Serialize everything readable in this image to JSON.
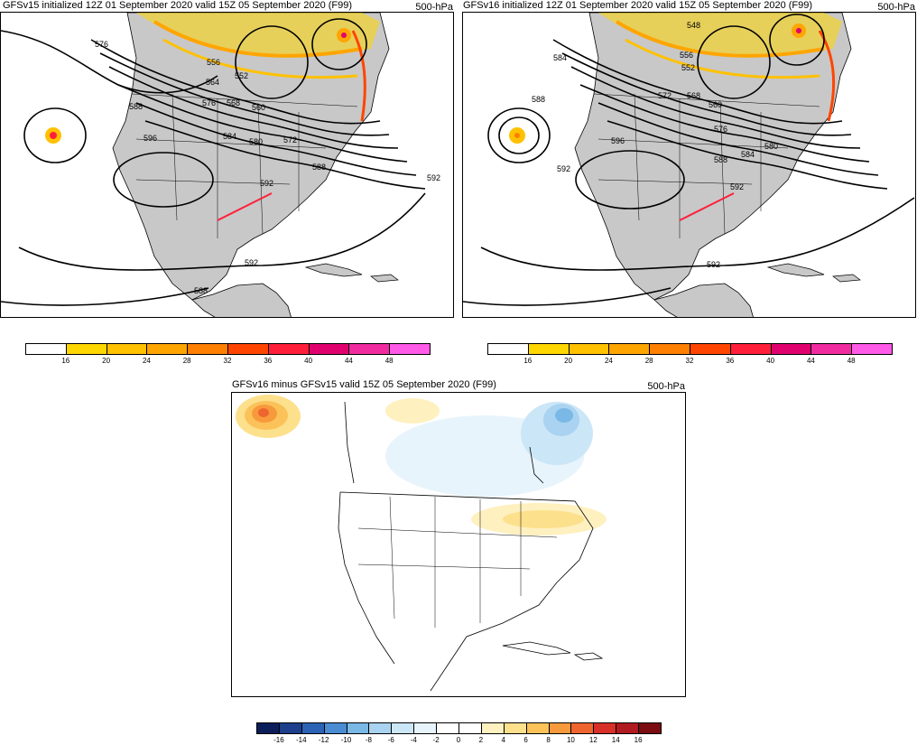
{
  "panels": {
    "gfsv15": {
      "title": "GFSv15 initialized 12Z 01 September 2020 valid 15Z 05 September 2020 (F99)",
      "level": "500-hPa",
      "contour_labels": [
        "576",
        "556",
        "552",
        "564",
        "576",
        "568",
        "560",
        "588",
        "584",
        "580",
        "596",
        "572",
        "588",
        "592",
        "592",
        "592",
        "588"
      ]
    },
    "gfsv16": {
      "title": "GFSv16 initialized 12Z 01 September 2020 valid 15Z 05 September 2020 (F99)",
      "level": "500-hPa",
      "contour_labels": [
        "548",
        "556",
        "552",
        "584",
        "588",
        "572",
        "568",
        "560",
        "576",
        "596",
        "580",
        "592",
        "588",
        "584",
        "592",
        "592",
        "592"
      ]
    },
    "diff": {
      "title": "GFSv16 minus GFSv15 valid 15Z 05 September 2020 (F99)",
      "level": "500-hPa"
    }
  },
  "colorbar_speed": {
    "labels": [
      "16",
      "20",
      "24",
      "28",
      "32",
      "36",
      "40",
      "44",
      "48"
    ],
    "colors": [
      "#ffffff",
      "#ffd700",
      "#ffc100",
      "#ffa500",
      "#ff7f00",
      "#ff4500",
      "#ff1f3a",
      "#e0006e",
      "#f02ca0",
      "#ff5ae8"
    ]
  },
  "colorbar_diff": {
    "labels": [
      "-16",
      "-14",
      "-12",
      "-10",
      "-8",
      "-6",
      "-4",
      "-2",
      "0",
      "2",
      "4",
      "6",
      "8",
      "10",
      "12",
      "14",
      "16"
    ],
    "colors": [
      "#0b1e5a",
      "#1d3f8c",
      "#2c63b4",
      "#4a8cd2",
      "#7ab8e6",
      "#a9d3f0",
      "#cbe6f7",
      "#e7f4fc",
      "#ffffff",
      "#ffffff",
      "#fff0c0",
      "#fde08c",
      "#fcc25a",
      "#f79a3c",
      "#ee6530",
      "#d73028",
      "#b01a20",
      "#7a0c12"
    ]
  }
}
